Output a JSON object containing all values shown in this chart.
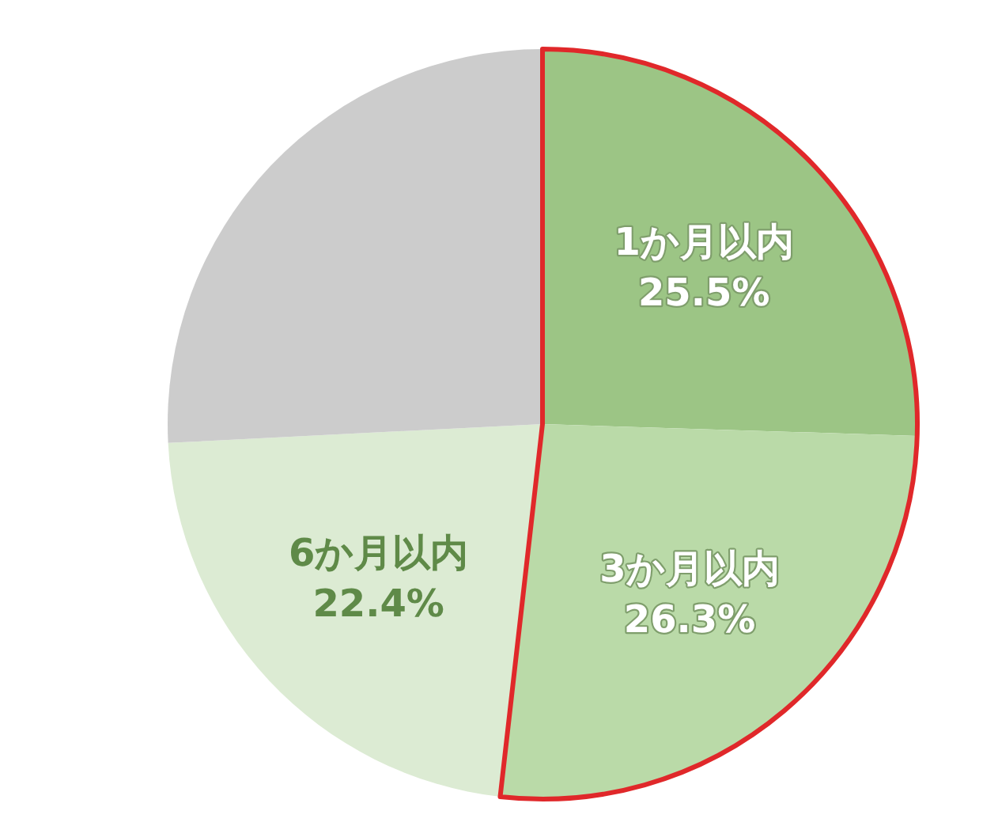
{
  "chart_data": {
    "type": "pie",
    "categories": [
      "1か月以内",
      "3か月以内",
      "6か月以内",
      null
    ],
    "values": [
      25.5,
      26.3,
      22.4,
      25.8
    ],
    "colors": [
      "#9cc585",
      "#badaa8",
      "#dcebd3",
      "#cccccc"
    ],
    "value_labels": [
      "25.5%",
      "26.3%",
      "22.4%",
      null
    ],
    "legend": false
  }
}
